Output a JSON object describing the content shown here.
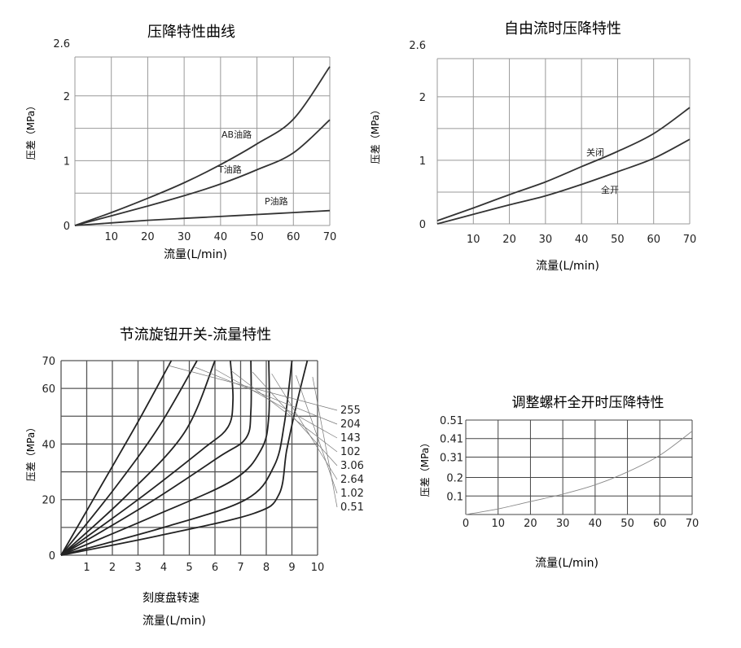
{
  "chart_data": [
    {
      "type": "line",
      "title": "压降特性曲线",
      "xlabel": "流量(L/min)",
      "ylabel": "压差（MPa）",
      "xlim": [
        0,
        70
      ],
      "ylim": [
        0,
        2.6
      ],
      "xticks": [
        "10",
        "20",
        "30",
        "40",
        "50",
        "60",
        "70"
      ],
      "yticks": [
        {
          "v": 0,
          "label": "0"
        },
        {
          "v": 1,
          "label": "1"
        },
        {
          "v": 2,
          "label": "2"
        },
        {
          "v": 2.6,
          "label": "2.6"
        }
      ],
      "grid": true,
      "series": [
        {
          "name": "AB油路",
          "x": [
            0,
            10,
            20,
            30,
            40,
            50,
            60,
            70
          ],
          "y": [
            0,
            0.2,
            0.42,
            0.66,
            0.94,
            1.26,
            1.64,
            2.45
          ]
        },
        {
          "name": "T油路",
          "x": [
            0,
            10,
            20,
            30,
            40,
            50,
            60,
            70
          ],
          "y": [
            0,
            0.15,
            0.3,
            0.46,
            0.64,
            0.86,
            1.12,
            1.63
          ]
        },
        {
          "name": "P油路",
          "x": [
            0,
            10,
            20,
            30,
            40,
            50,
            60,
            70
          ],
          "y": [
            0,
            0.04,
            0.08,
            0.11,
            0.14,
            0.17,
            0.2,
            0.23
          ]
        }
      ]
    },
    {
      "type": "line",
      "title": "自由流时压降特性",
      "xlabel": "流量(L/min)",
      "ylabel": "压差（MPa）",
      "xlim": [
        0,
        70
      ],
      "ylim": [
        0,
        2.6
      ],
      "xticks": [
        "10",
        "20",
        "30",
        "40",
        "50",
        "60",
        "70"
      ],
      "yticks": [
        {
          "v": 0,
          "label": "0"
        },
        {
          "v": 1,
          "label": "1"
        },
        {
          "v": 2,
          "label": "2"
        },
        {
          "v": 2.6,
          "label": "2.6"
        }
      ],
      "grid": true,
      "series": [
        {
          "name": "关闭",
          "x": [
            0,
            10,
            20,
            30,
            40,
            50,
            60,
            70
          ],
          "y": [
            0.05,
            0.25,
            0.46,
            0.66,
            0.9,
            1.14,
            1.42,
            1.83
          ]
        },
        {
          "name": "全开",
          "x": [
            0,
            10,
            20,
            30,
            40,
            50,
            60,
            70
          ],
          "y": [
            0,
            0.15,
            0.3,
            0.44,
            0.62,
            0.82,
            1.03,
            1.33
          ]
        }
      ]
    },
    {
      "type": "line",
      "title": "节流旋钮开关-流量特性",
      "xlabel": "刻度盘转速",
      "xlabel2": "流量(L/min)",
      "ylabel": "压差（MPa）",
      "xlim": [
        0,
        10
      ],
      "ylim": [
        0,
        70
      ],
      "xticks": [
        "1",
        "2",
        "3",
        "4",
        "5",
        "6",
        "7",
        "8",
        "9",
        "10"
      ],
      "yticks": [
        {
          "v": 0,
          "label": "0"
        },
        {
          "v": 20,
          "label": "20"
        },
        {
          "v": 40,
          "label": "40"
        },
        {
          "v": 60,
          "label": "60"
        },
        {
          "v": 70,
          "label": "70"
        }
      ],
      "grid": true,
      "series": [
        {
          "name": "255",
          "x": [
            0,
            1.5,
            3,
            4.3
          ],
          "y": [
            0,
            24,
            48,
            70
          ]
        },
        {
          "name": "204",
          "x": [
            0,
            2,
            3.8,
            5.3
          ],
          "y": [
            0,
            23,
            46,
            70
          ]
        },
        {
          "name": "143",
          "x": [
            0,
            2.5,
            4.8,
            6
          ],
          "y": [
            0,
            21,
            44,
            70
          ]
        },
        {
          "name": "102",
          "x": [
            0,
            3,
            5.5,
            6.5,
            6.7,
            6.6
          ],
          "y": [
            0,
            20,
            38,
            46,
            56,
            70
          ]
        },
        {
          "name": "3.06",
          "x": [
            0,
            3.3,
            6.1,
            7.2,
            7.4,
            7.4
          ],
          "y": [
            0,
            18,
            35,
            42,
            52,
            70
          ]
        },
        {
          "name": "2.64",
          "x": [
            0,
            3.6,
            6.7,
            7.8,
            8.1,
            8.1
          ],
          "y": [
            0,
            14,
            27,
            38,
            50,
            70
          ]
        },
        {
          "name": "1.02",
          "x": [
            0,
            4,
            7.2,
            8.3,
            8.7,
            9
          ],
          "y": [
            0,
            10,
            20,
            32,
            47,
            70
          ]
        },
        {
          "name": "0.51",
          "x": [
            0,
            3.8,
            7.5,
            8.5,
            8.8,
            9.2,
            9.6
          ],
          "y": [
            0,
            7,
            15,
            22,
            38,
            55,
            70
          ]
        }
      ]
    },
    {
      "type": "line",
      "title": "调整螺杆全开时压降特性",
      "xlabel": "流量(L/min)",
      "ylabel": "压差（MPa）",
      "xlim": [
        0,
        70
      ],
      "ylim": [
        0,
        0.51
      ],
      "xticks": [
        "0",
        "10",
        "20",
        "30",
        "40",
        "50",
        "60",
        "70"
      ],
      "yticks": [
        {
          "v": 0.1,
          "label": "0.1"
        },
        {
          "v": 0.2,
          "label": "0.2"
        },
        {
          "v": 0.31,
          "label": "0.31"
        },
        {
          "v": 0.41,
          "label": "0.41"
        },
        {
          "v": 0.51,
          "label": "0.51"
        }
      ],
      "grid": true,
      "series": [
        {
          "x": [
            0,
            10,
            20,
            30,
            40,
            50,
            60,
            70
          ],
          "y": [
            0,
            0.03,
            0.07,
            0.11,
            0.16,
            0.23,
            0.32,
            0.45
          ]
        }
      ]
    }
  ]
}
